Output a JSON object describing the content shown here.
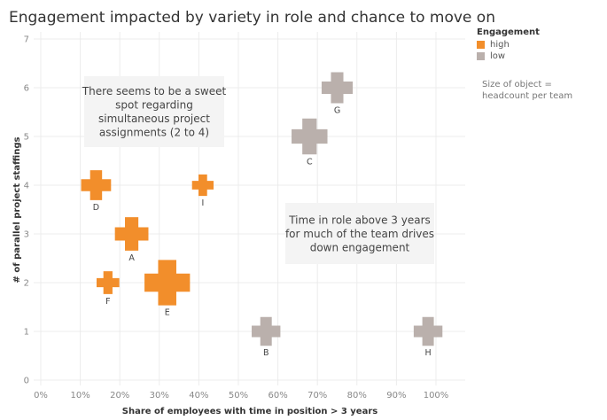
{
  "title": "Engagement impacted by variety in role and chance to move on",
  "legend": {
    "title": "Engagement",
    "items": [
      {
        "label": "high",
        "color": "#f28e2b"
      },
      {
        "label": "low",
        "color": "#bab0ac"
      }
    ],
    "size_note": "Size of object = headcount per team"
  },
  "chart_data": {
    "type": "scatter",
    "title": "Engagement impacted by variety in role and chance to move on",
    "xlabel": "Share of employees with time in position > 3 years",
    "ylabel": "# of parallel project staffings",
    "xlim": [
      0,
      1
    ],
    "ylim": [
      0,
      7
    ],
    "xticks": [
      0,
      0.1,
      0.2,
      0.3,
      0.4,
      0.5,
      0.6,
      0.7,
      0.8,
      0.9,
      1.0
    ],
    "xtick_labels": [
      "0%",
      "10%",
      "20%",
      "30%",
      "40%",
      "50%",
      "60%",
      "70%",
      "80%",
      "90%",
      "100%"
    ],
    "yticks": [
      0,
      1,
      2,
      3,
      4,
      5,
      6,
      7
    ],
    "ytick_labels": [
      "0",
      "1",
      "2",
      "3",
      "4",
      "5",
      "6",
      "7"
    ],
    "grid": true,
    "legend_position": "top-right",
    "marker": "cross",
    "points": [
      {
        "label": "A",
        "x": 0.23,
        "y": 3,
        "engagement": "high",
        "size": 1.4
      },
      {
        "label": "B",
        "x": 0.57,
        "y": 1,
        "engagement": "low",
        "size": 1.2
      },
      {
        "label": "C",
        "x": 0.68,
        "y": 5,
        "engagement": "low",
        "size": 1.5
      },
      {
        "label": "D",
        "x": 0.14,
        "y": 4,
        "engagement": "high",
        "size": 1.25
      },
      {
        "label": "E",
        "x": 0.32,
        "y": 2,
        "engagement": "high",
        "size": 1.9
      },
      {
        "label": "F",
        "x": 0.17,
        "y": 2,
        "engagement": "high",
        "size": 0.95
      },
      {
        "label": "G",
        "x": 0.75,
        "y": 6,
        "engagement": "low",
        "size": 1.3
      },
      {
        "label": "H",
        "x": 0.98,
        "y": 1,
        "engagement": "low",
        "size": 1.2
      },
      {
        "label": "I",
        "x": 0.41,
        "y": 4,
        "engagement": "high",
        "size": 0.9
      }
    ],
    "annotations": [
      {
        "text": [
          "There seems to be a sweet",
          "spot regarding",
          "simultaneous project",
          "assignments (2 to 4)"
        ]
      },
      {
        "text": [
          "Time in role above 3 years",
          "for much of the team drives",
          "down engagement"
        ]
      }
    ]
  }
}
